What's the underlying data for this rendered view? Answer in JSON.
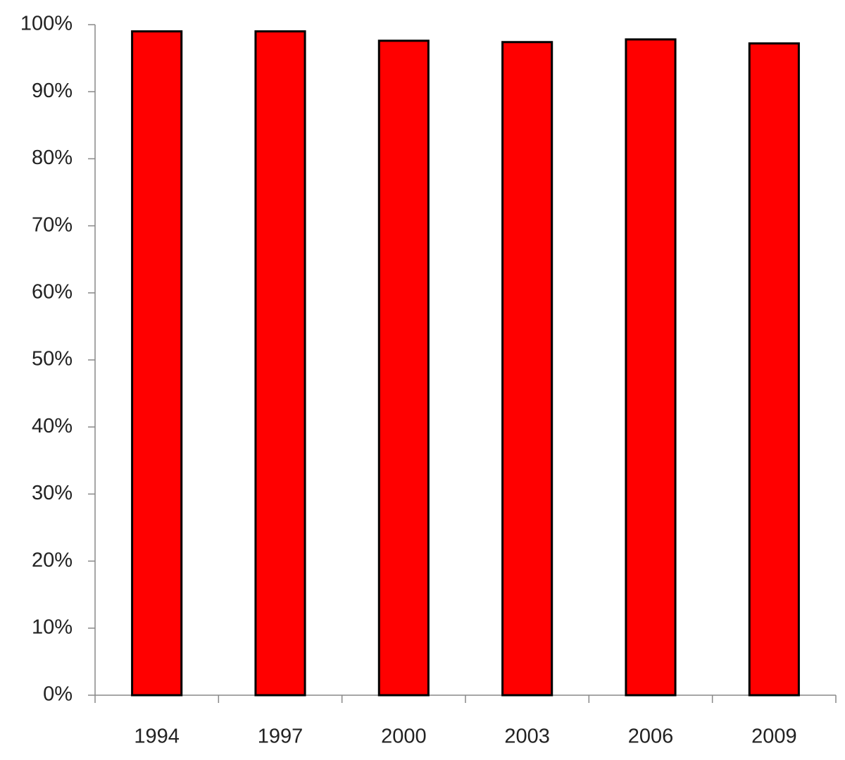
{
  "chart_data": {
    "type": "bar",
    "categories": [
      "1994",
      "1997",
      "2000",
      "2003",
      "2006",
      "2009"
    ],
    "values": [
      99,
      99,
      97.6,
      97.4,
      97.8,
      97.2
    ],
    "color": "#ff0000",
    "ylim": [
      0,
      100
    ],
    "yticks": [
      {
        "value": 0,
        "label": "0%"
      },
      {
        "value": 10,
        "label": "10%"
      },
      {
        "value": 20,
        "label": "20%"
      },
      {
        "value": 30,
        "label": "30%"
      },
      {
        "value": 40,
        "label": "40%"
      },
      {
        "value": 50,
        "label": "50%"
      },
      {
        "value": 60,
        "label": "60%"
      },
      {
        "value": 70,
        "label": "70%"
      },
      {
        "value": 80,
        "label": "80%"
      },
      {
        "value": 90,
        "label": "90%"
      },
      {
        "value": 100,
        "label": "100%"
      }
    ],
    "grid": false
  }
}
